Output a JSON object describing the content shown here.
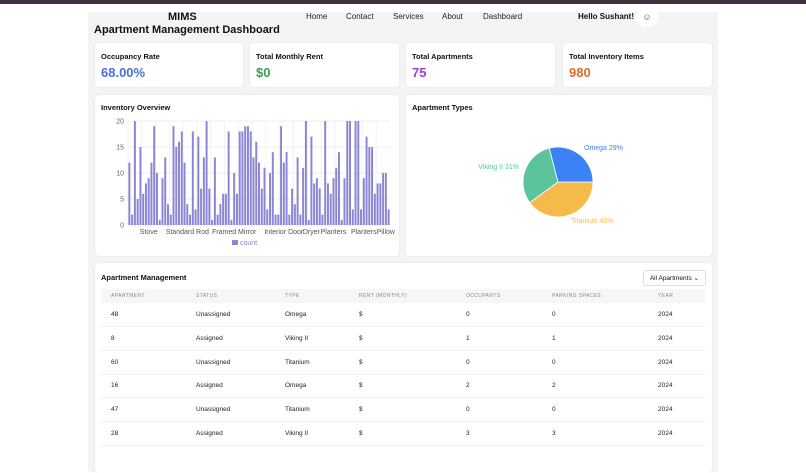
{
  "header": {
    "brand": "MIMS",
    "nav": [
      "Home",
      "Contact",
      "Services",
      "About",
      "Dashboard"
    ],
    "greeting": "Hello Sushant!",
    "avatar_icon": "user-icon"
  },
  "page_title": "Apartment Management Dashboard",
  "kpis": [
    {
      "label": "Occupancy Rate",
      "value": "68.00%",
      "color": "#4a6fe0"
    },
    {
      "label": "Total Monthly Rent",
      "value": "$0",
      "color": "#3e9b4f"
    },
    {
      "label": "Total Apartments",
      "value": "75",
      "color": "#9a3fe0"
    },
    {
      "label": "Total Inventory Items",
      "value": "980",
      "color": "#e06a2e"
    }
  ],
  "inventory_chart": {
    "title": "Inventory Overview"
  },
  "types_chart": {
    "title": "Apartment Types"
  },
  "chart_data": [
    {
      "type": "bar",
      "title": "Inventory Overview",
      "ylim": [
        0,
        20
      ],
      "yticks": [
        0,
        5,
        10,
        15,
        20
      ],
      "grid": true,
      "legend": "bottom",
      "color": "#8b85d6",
      "x_tick_labels": [
        {
          "index": 7,
          "label": "Stove"
        },
        {
          "index": 21,
          "label": "Standard Rod"
        },
        {
          "index": 38,
          "label": "Framed Mirror"
        },
        {
          "index": 56,
          "label": "Interior Door"
        },
        {
          "index": 66,
          "label": "Dryer"
        },
        {
          "index": 74,
          "label": "Planters"
        },
        {
          "index": 85,
          "label": "Planters"
        },
        {
          "index": 93,
          "label": "Pillow"
        }
      ],
      "series": [
        {
          "name": "count",
          "values": [
            12,
            2,
            20,
            5,
            15,
            6,
            8,
            9,
            12,
            19,
            10,
            1,
            9,
            13,
            4,
            2,
            19,
            15,
            16,
            18,
            12,
            4,
            2,
            18,
            3,
            17,
            7,
            13,
            20,
            7,
            1,
            13,
            2,
            4,
            6,
            6,
            18,
            1,
            10,
            6,
            18,
            18,
            19,
            19,
            18,
            13,
            16,
            12,
            7,
            11,
            3,
            10,
            14,
            2,
            2,
            19,
            12,
            14,
            2,
            7,
            4,
            13,
            2,
            11,
            20,
            1,
            17,
            8,
            9,
            7,
            2,
            20,
            8,
            6,
            9,
            11,
            14,
            1,
            9,
            20,
            20,
            3,
            20,
            20,
            3,
            9,
            17,
            15,
            15,
            6,
            8,
            8,
            10,
            10,
            3
          ]
        }
      ]
    },
    {
      "type": "pie",
      "title": "Apartment Types",
      "slices": [
        {
          "label": "Titanium 40%",
          "name": "Titanium",
          "value": 40,
          "color": "#f4bb4a"
        },
        {
          "label": "Viking II 31%",
          "name": "Viking II",
          "value": 31,
          "color": "#5cc49c"
        },
        {
          "label": "Omega 29%",
          "name": "Omega",
          "value": 29,
          "color": "#3b82f6"
        }
      ]
    }
  ],
  "table": {
    "title": "Apartment Management",
    "filter": "All Apartments",
    "columns": [
      "APARTMENT",
      "STATUS",
      "TYPE",
      "RENT (MONTHLY)",
      "OCCUPANTS",
      "PARKING SPACES",
      "YEAR"
    ],
    "rows": [
      [
        "48",
        "Unassigned",
        "Omega",
        "$",
        "0",
        "0",
        "2024"
      ],
      [
        "8",
        "Assigned",
        "Viking II",
        "$",
        "1",
        "1",
        "2024"
      ],
      [
        "60",
        "Unassigned",
        "Titanium",
        "$",
        "0",
        "0",
        "2024"
      ],
      [
        "16",
        "Assigned",
        "Omega",
        "$",
        "2",
        "2",
        "2024"
      ],
      [
        "47",
        "Unassigned",
        "Titanium",
        "$",
        "0",
        "0",
        "2024"
      ],
      [
        "28",
        "Assigned",
        "Viking II",
        "$",
        "3",
        "3",
        "2024"
      ]
    ]
  }
}
